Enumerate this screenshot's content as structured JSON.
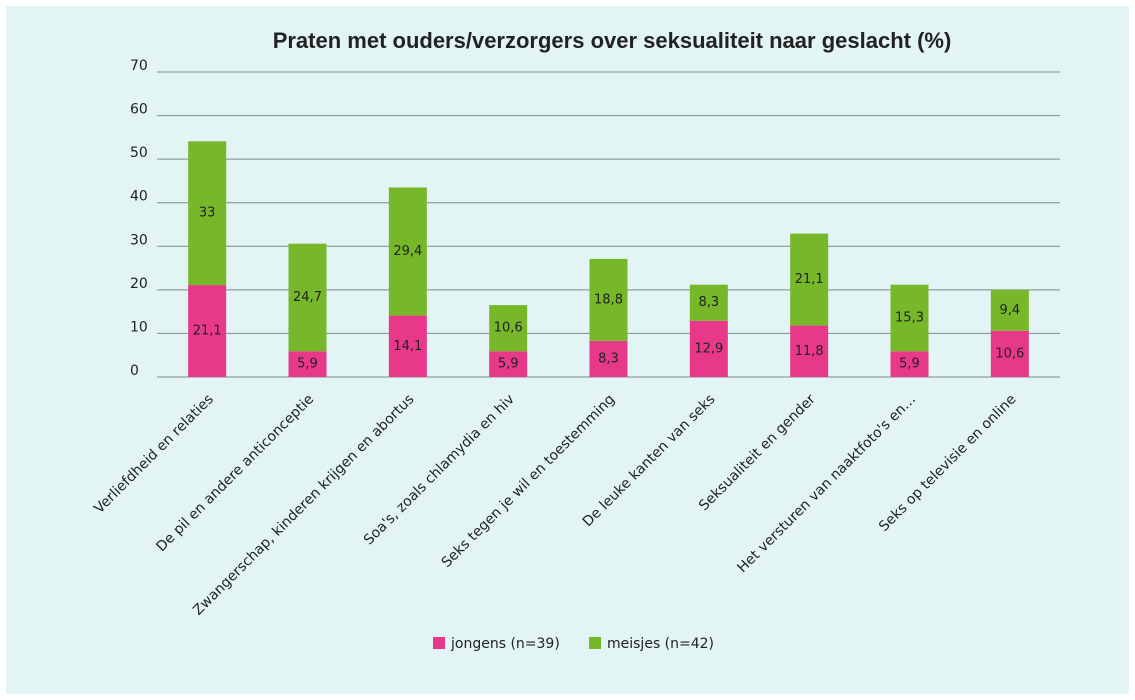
{
  "chart_data": {
    "type": "stacked_bar",
    "title": "Praten met ouders/verzorgers over seksualiteit naar geslacht (%)",
    "categories": [
      "Verliefdheid en relaties",
      "De pil en andere anticonceptie",
      "Zwangerschap, kinderen krijgen en abortus",
      "Soa's, zoals chlamydia en hiv",
      "Seks tegen je wil en toestemming",
      "De leuke kanten van seks",
      "Seksualiteit en gender",
      "Het versturen van naaktfoto's en…",
      "Seks op televisie en online"
    ],
    "series": [
      {
        "name": "jongens (n=39)",
        "color": "#e8388a",
        "values": [
          21.1,
          5.9,
          14.1,
          5.9,
          8.3,
          12.9,
          11.8,
          5.9,
          10.6
        ],
        "value_labels": [
          "21,1",
          "5,9",
          "14,1",
          "5,9",
          "8,3",
          "12,9",
          "11,8",
          "5,9",
          "10,6"
        ]
      },
      {
        "name": "meisjes (n=42)",
        "color": "#76b82a",
        "values": [
          33,
          24.7,
          29.4,
          10.6,
          18.8,
          8.3,
          21.1,
          15.3,
          9.4
        ],
        "value_labels": [
          "33",
          "24,7",
          "29,4",
          "10,6",
          "18,8",
          "8,3",
          "21,1",
          "15,3",
          "9,4"
        ]
      }
    ],
    "ylim": [
      0,
      70
    ],
    "yticks": [
      0,
      10,
      20,
      30,
      40,
      50,
      60,
      70
    ],
    "grid": true,
    "legend": "bottom"
  }
}
